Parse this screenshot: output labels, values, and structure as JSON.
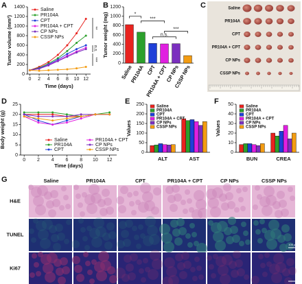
{
  "chart_data": [
    {
      "panel": "A",
      "type": "line",
      "x_label": "Time (days)",
      "y_label": "Tumor volume (mm³)",
      "x": [
        0,
        2,
        4,
        6,
        8,
        10,
        12
      ],
      "xlim": [
        -0.5,
        13
      ],
      "xticks": [
        0,
        2,
        4,
        6,
        8,
        10,
        12
      ],
      "ylim": [
        0,
        1400
      ],
      "yticks": [
        0,
        200,
        400,
        600,
        800,
        1000,
        1200,
        1400
      ],
      "legend": "upper left",
      "series": [
        {
          "name": "Saline",
          "color": "#e8231f",
          "values": [
            80,
            150,
            250,
            400,
            600,
            850,
            1150
          ]
        },
        {
          "name": "PR104A",
          "color": "#2ca02c",
          "values": [
            80,
            130,
            220,
            330,
            480,
            650,
            800
          ]
        },
        {
          "name": "CPT",
          "color": "#1f3fd8",
          "values": [
            80,
            120,
            200,
            300,
            420,
            520,
            600
          ]
        },
        {
          "name": "PR104A + CPT",
          "color": "#e020e0",
          "values": [
            80,
            110,
            190,
            280,
            380,
            470,
            550
          ]
        },
        {
          "name": "CP NPs",
          "color": "#7b2fbf",
          "values": [
            80,
            110,
            180,
            270,
            360,
            450,
            520
          ]
        },
        {
          "name": "CSSP NPs",
          "color": "#f39c12",
          "values": [
            80,
            70,
            80,
            90,
            100,
            120,
            150
          ]
        }
      ],
      "annotations": [
        "**",
        "n.s.",
        "***"
      ]
    },
    {
      "panel": "B",
      "type": "bar",
      "y_label": "Tumor weight (mg)",
      "categories": [
        "Saline",
        "PR104A",
        "CPT",
        "PR104A + CPT",
        "CP NPs",
        "CSSP NPs"
      ],
      "values": [
        820,
        660,
        420,
        410,
        415,
        160
      ],
      "colors": [
        "#e8231f",
        "#2ca02c",
        "#1f3fd8",
        "#e020e0",
        "#7b2fbf",
        "#f39c12"
      ],
      "ylim": [
        0,
        1200
      ],
      "yticks": [
        0,
        200,
        400,
        600,
        800,
        1000,
        1200
      ],
      "annotations": [
        "*",
        "***",
        "n.s.",
        "***"
      ]
    },
    {
      "panel": "D",
      "type": "line",
      "x_label": "Time (days)",
      "y_label": "Body weight (g)",
      "x": [
        0,
        2,
        4,
        6,
        8,
        10,
        12
      ],
      "xlim": [
        -0.5,
        13
      ],
      "xticks": [
        0,
        2,
        4,
        6,
        8,
        10,
        12
      ],
      "ylim": [
        0,
        25
      ],
      "yticks": [
        0,
        5,
        10,
        15,
        20,
        25
      ],
      "legend": "lower center",
      "series": [
        {
          "name": "Saline",
          "color": "#e8231f",
          "values": [
            20,
            20,
            20,
            19,
            19,
            20,
            20
          ]
        },
        {
          "name": "PR104A",
          "color": "#2ca02c",
          "values": [
            21,
            21,
            21,
            20,
            19,
            20,
            21
          ]
        },
        {
          "name": "CPT",
          "color": "#1f3fd8",
          "values": [
            20,
            17,
            15,
            17,
            19,
            20,
            20
          ]
        },
        {
          "name": "PR104A + CPT",
          "color": "#e020e0",
          "values": [
            19,
            16,
            15,
            16,
            18,
            20,
            20
          ]
        },
        {
          "name": "CP NPs",
          "color": "#7b2fbf",
          "values": [
            20,
            19,
            19,
            19,
            20,
            20,
            20
          ]
        },
        {
          "name": "CSSP NPs",
          "color": "#f39c12",
          "values": [
            19,
            18,
            17,
            18,
            19,
            20,
            20
          ]
        }
      ]
    },
    {
      "panel": "E",
      "type": "bar",
      "y_label": "Values",
      "categories": [
        "ALT",
        "AST"
      ],
      "ylim": [
        0,
        250
      ],
      "yticks": [
        0,
        50,
        100,
        150,
        200,
        250
      ],
      "legend": "upper left",
      "series": [
        {
          "name": "Saline",
          "color": "#e8231f",
          "values": [
            35,
            175
          ]
        },
        {
          "name": "PR104A",
          "color": "#2ca02c",
          "values": [
            38,
            165
          ]
        },
        {
          "name": "CPT",
          "color": "#1f3fd8",
          "values": [
            45,
            170
          ]
        },
        {
          "name": "PR104A + CPT",
          "color": "#e020e0",
          "values": [
            40,
            160
          ]
        },
        {
          "name": "CP NPs",
          "color": "#7b2fbf",
          "values": [
            38,
            140
          ]
        },
        {
          "name": "CSSP NPs",
          "color": "#f39c12",
          "values": [
            40,
            160
          ]
        }
      ]
    },
    {
      "panel": "F",
      "type": "bar",
      "y_label": "Values",
      "categories": [
        "BUN",
        "CREA"
      ],
      "ylim": [
        0,
        50
      ],
      "yticks": [
        0,
        10,
        20,
        30,
        40,
        50
      ],
      "legend": "upper left",
      "series": [
        {
          "name": "Saline",
          "color": "#e8231f",
          "values": [
            8,
            20
          ]
        },
        {
          "name": "PR104A",
          "color": "#2ca02c",
          "values": [
            9,
            17
          ]
        },
        {
          "name": "CPT",
          "color": "#1f3fd8",
          "values": [
            9,
            22
          ]
        },
        {
          "name": "PR104A + CPT",
          "color": "#e020e0",
          "values": [
            8,
            28
          ]
        },
        {
          "name": "CP NPs",
          "color": "#7b2fbf",
          "values": [
            7,
            14
          ]
        },
        {
          "name": "CSSP NPs",
          "color": "#f39c12",
          "values": [
            9,
            20
          ]
        }
      ]
    }
  ],
  "photo_panel": {
    "panel": "C",
    "rows": [
      "Saline",
      "PR104A",
      "CPT",
      "PR104A + CPT",
      "CP NPs",
      "CSSP NPs"
    ]
  },
  "histology_panel": {
    "panel": "G",
    "columns": [
      "Saline",
      "PR104A",
      "CPT",
      "PR104A + CPT",
      "CP NPs",
      "CSSP NPs"
    ],
    "rows": [
      "H&E",
      "TUNEL",
      "Ki67"
    ],
    "scale_bar": "100 µm"
  }
}
